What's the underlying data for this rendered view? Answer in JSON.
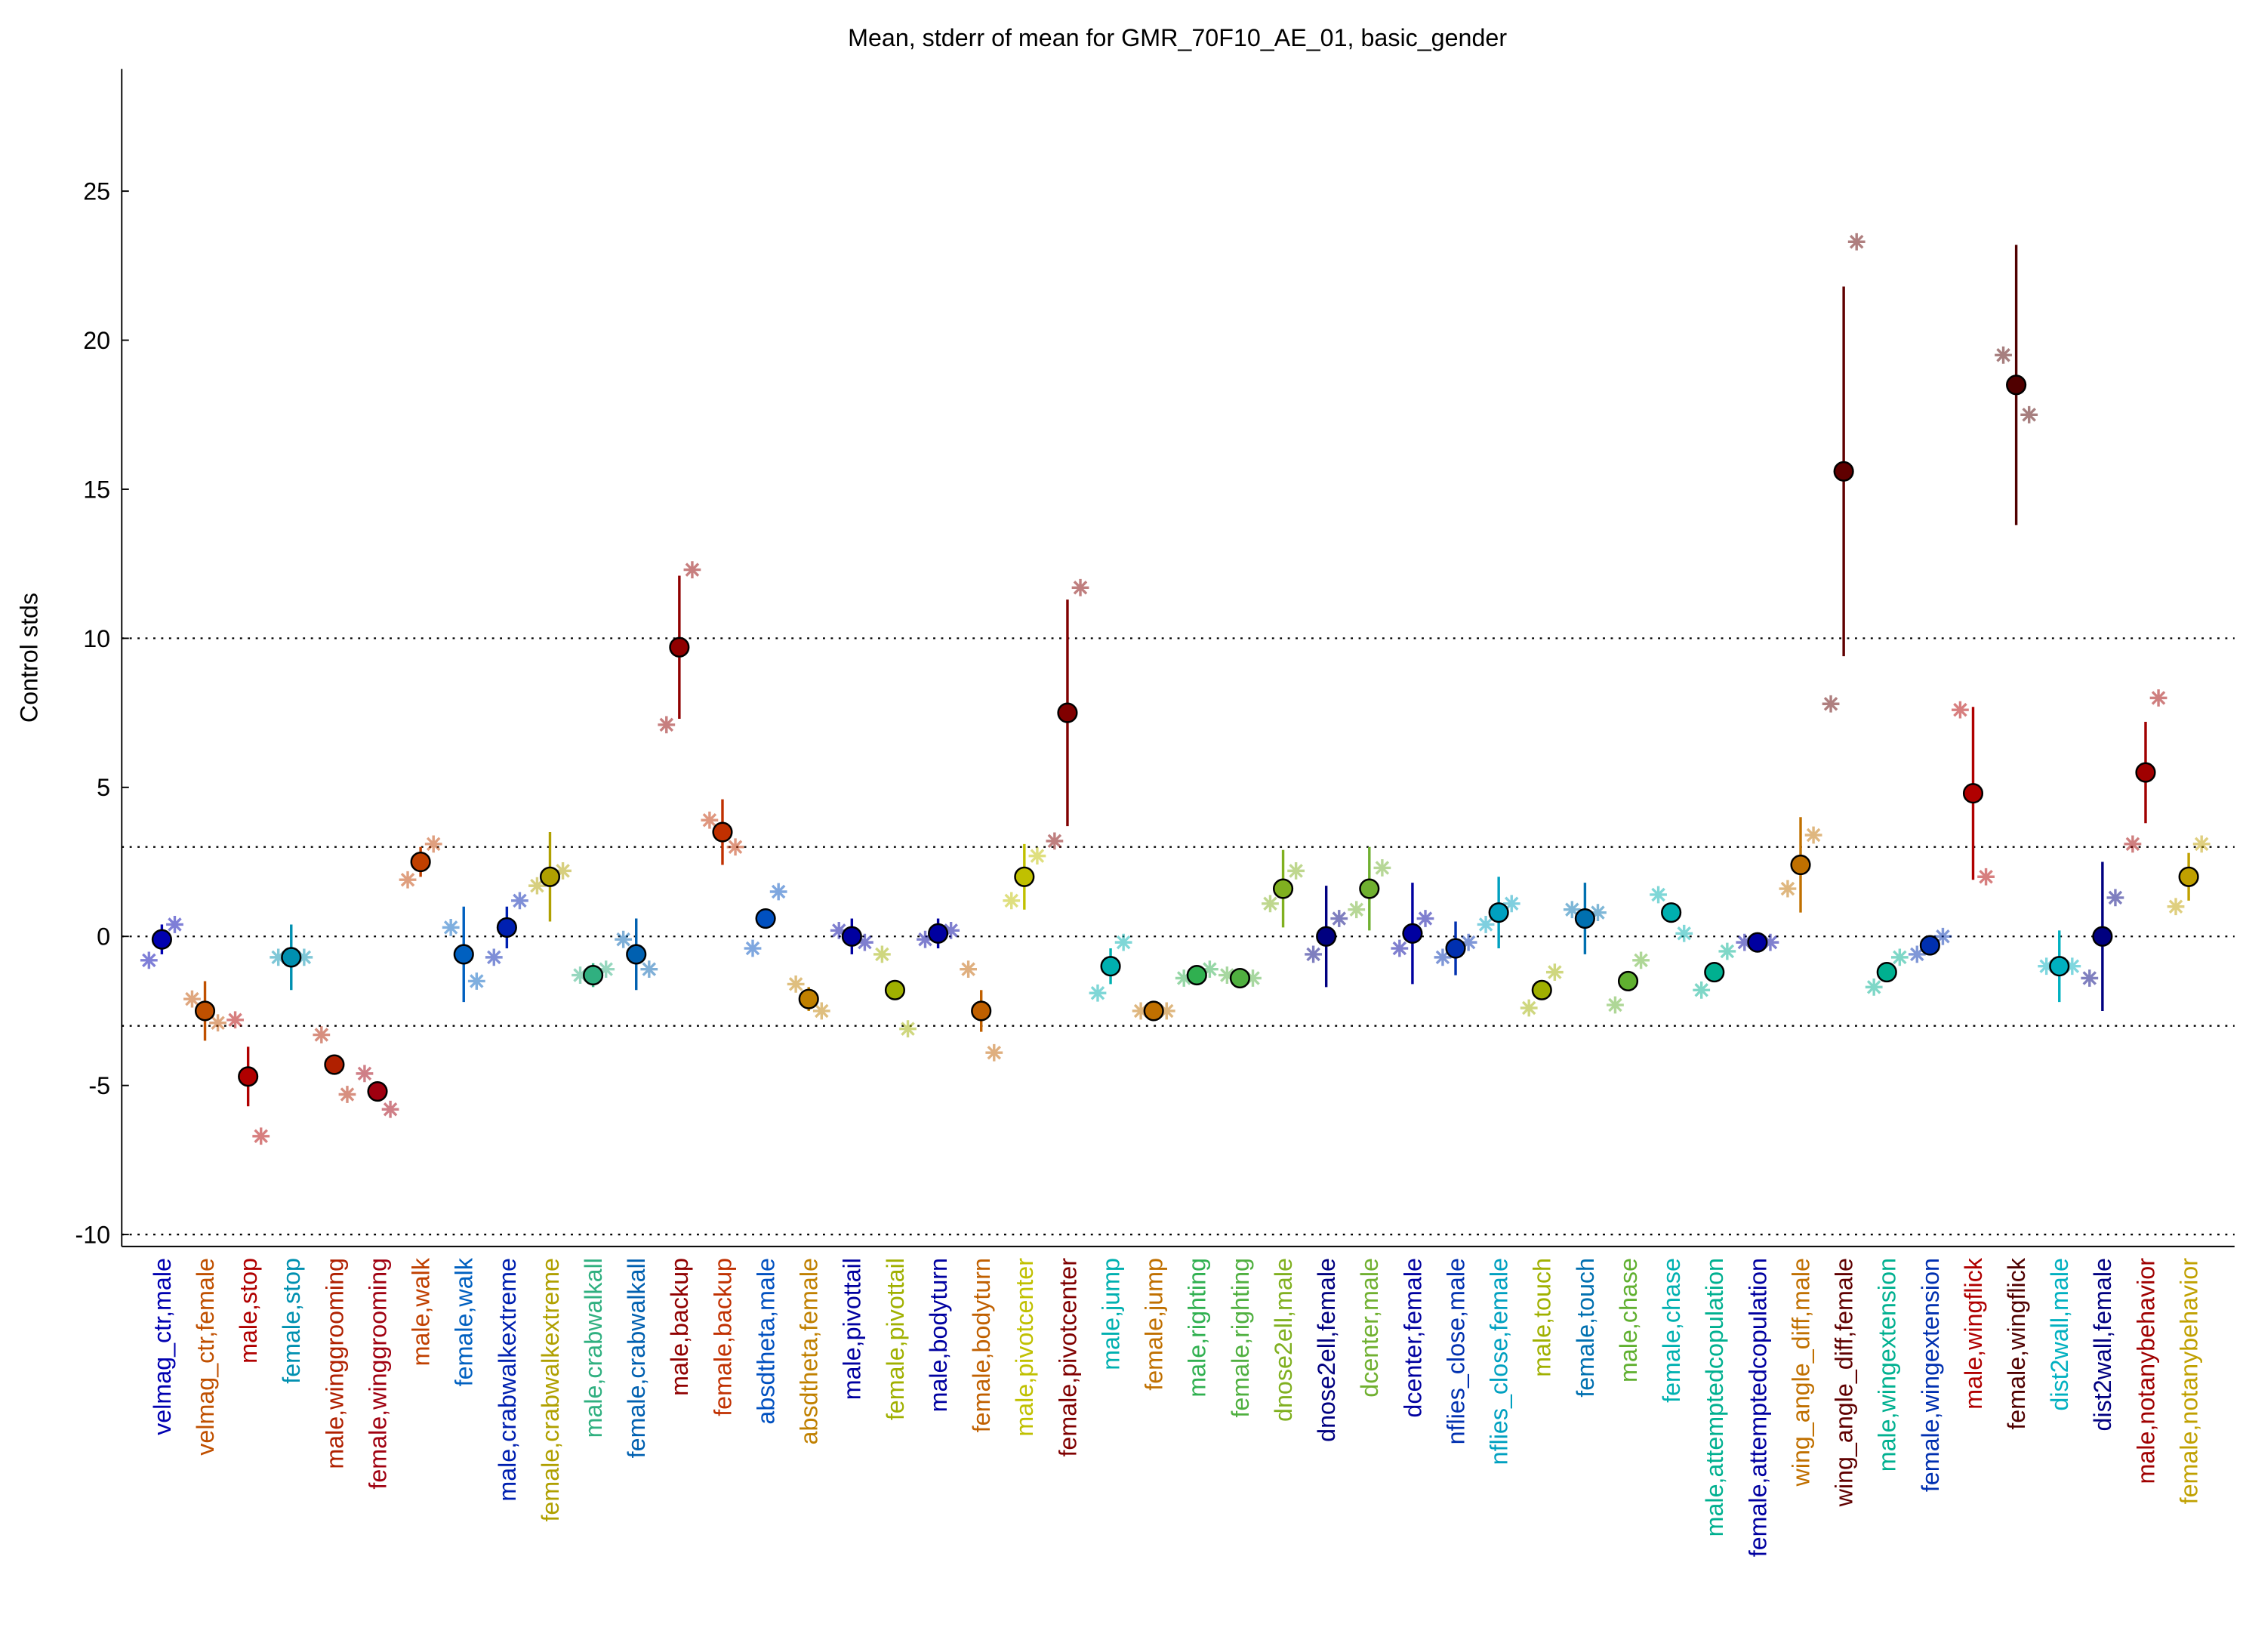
{
  "chart_data": {
    "type": "errorbar",
    "title": "Mean, stderr of mean for GMR_70F10_AE_01, basic_gender",
    "ylabel": "Control stds",
    "ylim": [
      -10.4,
      29.1
    ],
    "yticks": [
      -10,
      -5,
      0,
      5,
      10,
      15,
      20,
      25
    ],
    "hlines": [
      -10,
      -3,
      0,
      3,
      10
    ],
    "categories": [
      "velmag_ctr,male",
      "velmag_ctr,female",
      "male,stop",
      "female,stop",
      "male,winggrooming",
      "female,winggrooming",
      "male,walk",
      "female,walk",
      "male,crabwalkextreme",
      "female,crabwalkextreme",
      "male,crabwalkall",
      "female,crabwalkall",
      "male,backup",
      "female,backup",
      "absdtheta,male",
      "absdtheta,female",
      "male,pivottail",
      "female,pivottail",
      "male,bodyturn",
      "female,bodyturn",
      "male,pivotcenter",
      "female,pivotcenter",
      "male,jump",
      "female,jump",
      "male,righting",
      "female,righting",
      "dnose2ell,male",
      "dnose2ell,female",
      "dcenter,male",
      "dcenter,female",
      "nflies_close,male",
      "nflies_close,female",
      "male,touch",
      "female,touch",
      "male,chase",
      "female,chase",
      "male,attemptedcopulation",
      "female,attemptedcopulation",
      "wing_angle_diff,male",
      "wing_angle_diff,female",
      "male,wingextension",
      "female,wingextension",
      "male,wingflick",
      "female,wingflick",
      "dist2wall,male",
      "dist2wall,female",
      "male,notanybehavior",
      "female,notanybehavior"
    ],
    "colors": [
      "#0000b0",
      "#c05000",
      "#b00000",
      "#0090b0",
      "#b02000",
      "#a00010",
      "#c04000",
      "#0060c0",
      "#0020b0",
      "#b0a000",
      "#30b080",
      "#0060b0",
      "#900000",
      "#c03000",
      "#0050c0",
      "#c08000",
      "#0000a0",
      "#a0b000",
      "#0000a0",
      "#c06000",
      "#c0c000",
      "#800000",
      "#00b0b0",
      "#c07000",
      "#30b050",
      "#50b040",
      "#80b020",
      "#000080",
      "#70b030",
      "#0000a0",
      "#0030b0",
      "#00a0c0",
      "#a0b000",
      "#0070b0",
      "#60b030",
      "#00b0b0",
      "#00b090",
      "#0000a0",
      "#c07000",
      "#600000",
      "#00b090",
      "#0030b0",
      "#b00000",
      "#500000",
      "#00b0c0",
      "#000080",
      "#a00000",
      "#c0a000"
    ],
    "values": [
      -0.1,
      -2.5,
      -4.7,
      -0.7,
      -4.3,
      -5.2,
      2.5,
      -0.6,
      0.3,
      2.0,
      -1.3,
      -0.6,
      9.7,
      3.5,
      0.6,
      -2.1,
      0.0,
      -1.8,
      0.1,
      -2.5,
      2.0,
      7.5,
      -1.0,
      -2.5,
      -1.3,
      -1.4,
      1.6,
      0.0,
      1.6,
      0.1,
      -0.4,
      0.8,
      -1.8,
      0.6,
      -1.5,
      0.8,
      -1.2,
      -0.2,
      2.4,
      15.6,
      -1.2,
      -0.3,
      4.8,
      18.5,
      -1.0,
      0.0,
      5.5,
      2.0
    ],
    "errors": [
      0.5,
      1.0,
      1.0,
      1.1,
      0.2,
      0.2,
      0.5,
      1.6,
      0.7,
      1.5,
      0.4,
      1.2,
      2.4,
      1.1,
      0.3,
      0.4,
      0.6,
      0.2,
      0.5,
      0.7,
      1.1,
      3.8,
      0.6,
      0.1,
      0.1,
      0.1,
      1.3,
      1.7,
      1.4,
      1.7,
      0.9,
      1.2,
      0.2,
      1.2,
      0.1,
      0.2,
      0.1,
      0.1,
      1.6,
      6.2,
      0.1,
      0.1,
      2.9,
      4.7,
      1.2,
      2.5,
      1.7,
      0.8
    ],
    "points_a": [
      -0.8,
      -2.1,
      -2.8,
      -0.7,
      -3.3,
      -4.6,
      1.9,
      0.3,
      -0.7,
      1.7,
      -1.3,
      -0.1,
      7.1,
      3.9,
      -0.4,
      -1.6,
      0.2,
      -0.6,
      -0.1,
      -1.1,
      1.2,
      3.2,
      -1.9,
      -2.5,
      -1.4,
      -1.3,
      1.1,
      -0.6,
      0.9,
      -0.4,
      -0.7,
      0.4,
      -2.4,
      0.9,
      -2.3,
      1.4,
      -1.8,
      -0.2,
      1.6,
      7.8,
      -1.7,
      -0.6,
      7.6,
      19.5,
      -1.0,
      -1.4,
      3.1,
      1.0
    ],
    "points_b": [
      0.4,
      -2.9,
      -6.7,
      -0.7,
      -5.3,
      -5.8,
      3.1,
      -1.5,
      1.2,
      2.2,
      -1.1,
      -1.1,
      12.3,
      3.0,
      1.5,
      -2.5,
      -0.2,
      -3.1,
      0.2,
      -3.9,
      2.7,
      11.7,
      -0.2,
      -2.5,
      -1.1,
      -1.4,
      2.2,
      0.6,
      2.3,
      0.6,
      -0.2,
      1.1,
      -1.2,
      0.8,
      -0.8,
      0.1,
      -0.5,
      -0.2,
      3.4,
      23.3,
      -0.7,
      0.0,
      2.0,
      17.5,
      -1.0,
      1.3,
      8.0,
      3.1
    ]
  }
}
